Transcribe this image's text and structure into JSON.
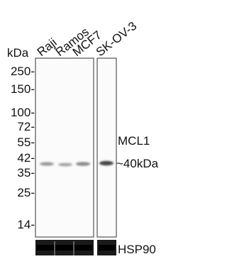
{
  "lanes": [
    "Raji",
    "Ramos",
    "MCF7",
    "SK-OV-3"
  ],
  "marker_unit": "kDa",
  "markers": [
    "250-",
    "150-",
    "100-",
    "72-",
    "55-",
    "42-",
    "35-",
    "25-",
    "14-"
  ],
  "target": "MCL1",
  "band_size": "~40kDa",
  "loading_control": "HSP90"
}
